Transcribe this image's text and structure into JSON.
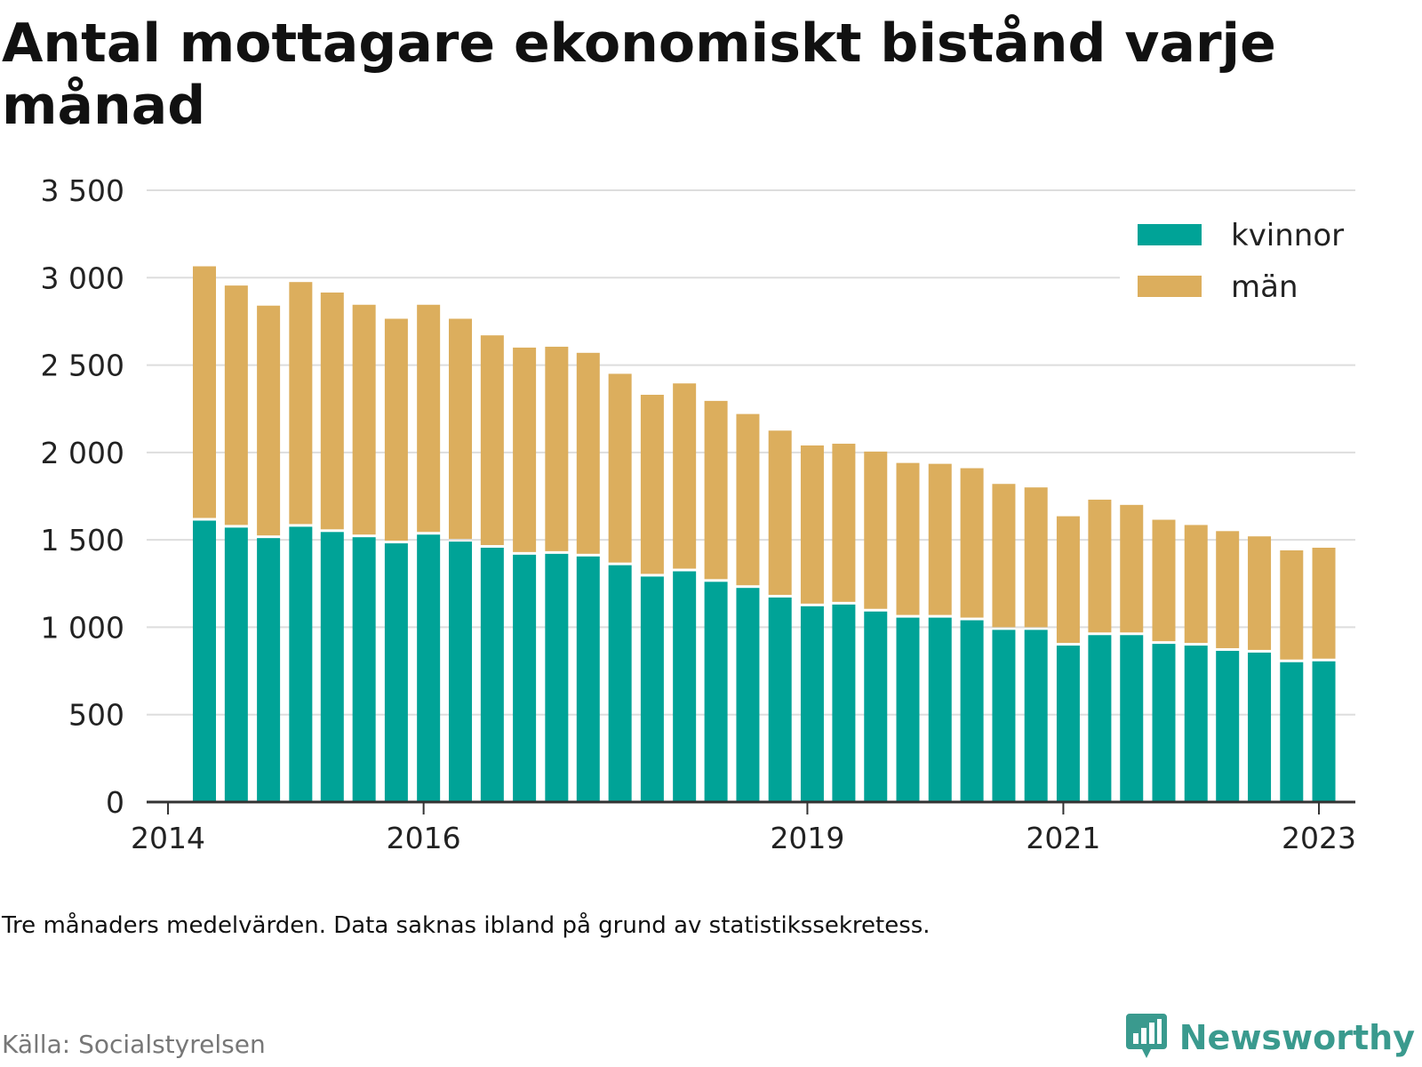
{
  "title": "Antal mottagare ekonomiskt bistånd varje månad",
  "note": "Tre månaders medelvärden. Data saknas ibland på grund av statistikssekretess.",
  "source": "Källa: Socialstyrelsen",
  "brand": "Newsworthy",
  "colors": {
    "kvinnor": "#00a397",
    "man": "#dcae5d",
    "grid": "#dddddd",
    "axis": "#333333"
  },
  "chart_data": {
    "type": "bar",
    "stacked": true,
    "x_type": "time",
    "x_range": [
      "2013-11-01",
      "2023-04-15"
    ],
    "x": [
      "2014-04",
      "2014-07",
      "2014-10",
      "2015-01",
      "2015-04",
      "2015-07",
      "2015-10",
      "2016-01",
      "2016-04",
      "2016-07",
      "2016-10",
      "2017-01",
      "2017-04",
      "2017-07",
      "2017-10",
      "2018-01",
      "2018-04",
      "2018-07",
      "2018-10",
      "2019-01",
      "2019-04",
      "2019-07",
      "2019-10",
      "2020-01",
      "2020-04",
      "2020-07",
      "2020-10",
      "2021-01",
      "2021-04",
      "2021-07",
      "2021-10",
      "2022-01",
      "2022-04",
      "2022-07",
      "2022-10",
      "2023-01"
    ],
    "series": [
      {
        "name": "kvinnor",
        "values": [
          1610,
          1570,
          1510,
          1575,
          1545,
          1515,
          1480,
          1530,
          1490,
          1455,
          1415,
          1420,
          1405,
          1355,
          1290,
          1320,
          1260,
          1225,
          1170,
          1120,
          1130,
          1090,
          1055,
          1055,
          1040,
          985,
          985,
          895,
          955,
          955,
          905,
          895,
          865,
          855,
          800,
          805
        ]
      },
      {
        "name": "män",
        "values": [
          1455,
          1385,
          1330,
          1400,
          1370,
          1330,
          1285,
          1315,
          1275,
          1215,
          1185,
          1185,
          1165,
          1095,
          1040,
          1075,
          1035,
          995,
          955,
          920,
          920,
          915,
          885,
          880,
          870,
          835,
          815,
          740,
          775,
          745,
          710,
          690,
          685,
          665,
          640,
          650
        ]
      }
    ],
    "x_ticks": [
      "2014",
      "2016",
      "2019",
      "2021",
      "2023"
    ],
    "y_ticks": [
      "0",
      "500",
      "1 000",
      "1 500",
      "2 000",
      "2 500",
      "3 000",
      "3 500"
    ],
    "ylim": [
      0,
      3500
    ],
    "legend": {
      "position": "top-right",
      "entries": [
        "kvinnor",
        "män"
      ]
    },
    "grid": true
  }
}
